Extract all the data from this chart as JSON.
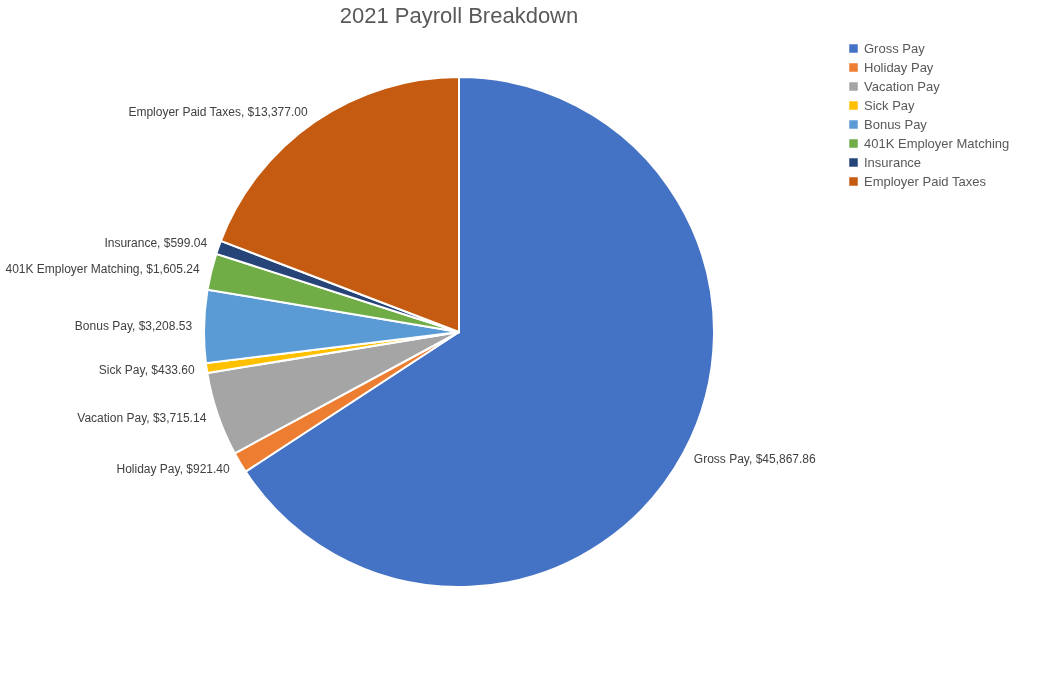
{
  "chart_data": {
    "type": "pie",
    "title": "2021 Payroll Breakdown",
    "categories": [
      "Gross Pay",
      "Holiday Pay",
      "Vacation Pay",
      "Sick Pay",
      "Bonus Pay",
      "401K Employer Matching",
      "Insurance",
      "Employer Paid Taxes"
    ],
    "values": [
      45867.86,
      921.4,
      3715.14,
      433.6,
      3208.53,
      1605.24,
      599.04,
      13377.0
    ],
    "colors": [
      "#4472c4",
      "#ed7d31",
      "#a5a5a5",
      "#ffc000",
      "#5b9bd5",
      "#70ad47",
      "#264478",
      "#c55a11"
    ],
    "value_labels": [
      "Gross Pay, $45,867.86",
      "Holiday Pay, $921.40",
      "Vacation Pay, $3,715.14",
      "Sick Pay, $433.60",
      "Bonus Pay, $3,208.53",
      "401K Employer Matching, $1,605.24",
      "Insurance, $599.04",
      "Employer Paid Taxes, $13,377.00"
    ],
    "legend": "right"
  }
}
